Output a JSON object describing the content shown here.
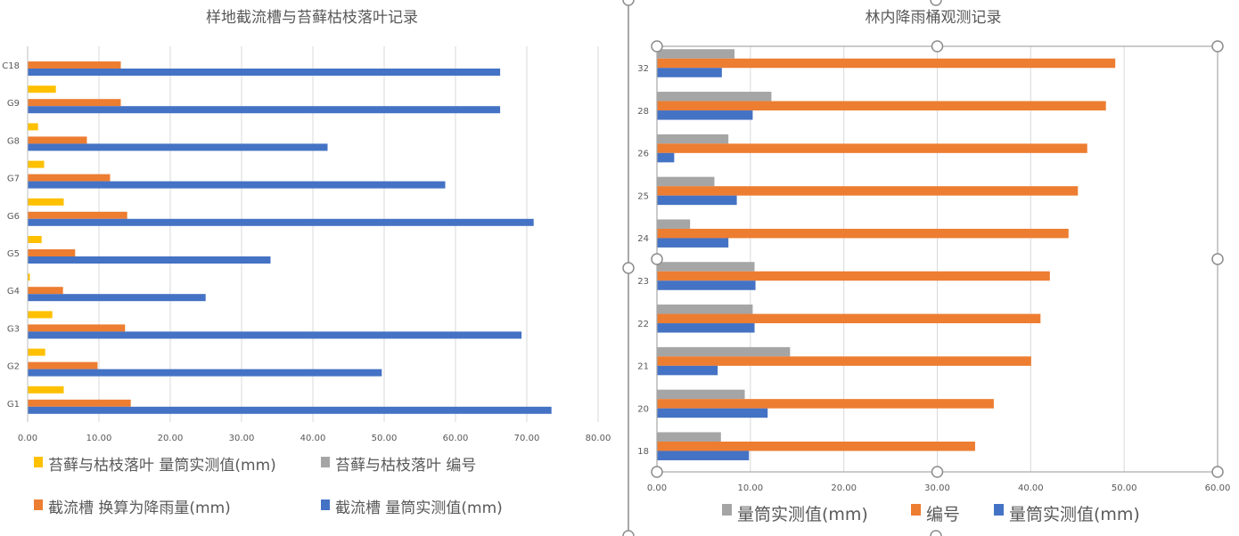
{
  "chart_data": [
    {
      "type": "bar",
      "orientation": "horizontal",
      "title": "样地截流槽与苔藓枯枝落叶记录",
      "categories": [
        "C18",
        "G9",
        "G8",
        "G7",
        "G6",
        "G5",
        "G4",
        "G3",
        "G2",
        "G1"
      ],
      "xlim": [
        0,
        80
      ],
      "xticks": [
        "0.00",
        "10.00",
        "20.00",
        "30.00",
        "40.00",
        "50.00",
        "60.00",
        "70.00",
        "80.00"
      ],
      "grid": true,
      "legend_position": "bottom",
      "series": [
        {
          "name": "苔藓与枯枝落叶 量筒实测值(mm)",
          "color": "#FFC000",
          "values": [
            0,
            3.9,
            1.4,
            2.25,
            5.0,
            1.9,
            0.25,
            3.4,
            2.4,
            5.0
          ]
        },
        {
          "name": "苔藓与枯枝落叶 编号",
          "color": "#A5A5A5",
          "values": [
            null,
            null,
            null,
            null,
            null,
            null,
            null,
            null,
            null,
            null
          ]
        },
        {
          "name": "截流槽 换算为降雨量(mm)",
          "color": "#ED7D31",
          "values": [
            13.0,
            13.0,
            8.25,
            11.5,
            13.9,
            6.6,
            4.9,
            13.6,
            9.75,
            14.4
          ]
        },
        {
          "name": "截流槽 量筒实测值(mm)",
          "color": "#4472C4",
          "values": [
            66.2,
            66.2,
            42.0,
            58.5,
            70.9,
            34.0,
            24.9,
            69.2,
            49.6,
            73.4
          ]
        }
      ]
    },
    {
      "type": "bar",
      "orientation": "horizontal",
      "title": "林内降雨桶观测记录",
      "categories": [
        "32",
        "28",
        "26",
        "25",
        "24",
        "23",
        "22",
        "21",
        "20",
        "18"
      ],
      "xlim": [
        0,
        60
      ],
      "xticks": [
        "0.00",
        "10.00",
        "20.00",
        "30.00",
        "40.00",
        "50.00",
        "60.00"
      ],
      "grid": true,
      "legend_position": "bottom",
      "selected": true,
      "series": [
        {
          "name": "量筒实测值(mm)",
          "color": "#A5A5A5",
          "values": [
            8.25,
            12.2,
            7.6,
            6.1,
            3.5,
            10.4,
            10.2,
            14.2,
            9.35,
            6.8
          ]
        },
        {
          "name": "编号",
          "color": "#ED7D31",
          "values": [
            49,
            48,
            46,
            45,
            44,
            42,
            41,
            40,
            36,
            34
          ]
        },
        {
          "name": "量筒实测值(mm)",
          "color": "#4472C4",
          "values": [
            6.9,
            10.2,
            1.8,
            8.5,
            7.6,
            10.5,
            10.4,
            6.45,
            11.8,
            9.8
          ]
        }
      ]
    }
  ]
}
